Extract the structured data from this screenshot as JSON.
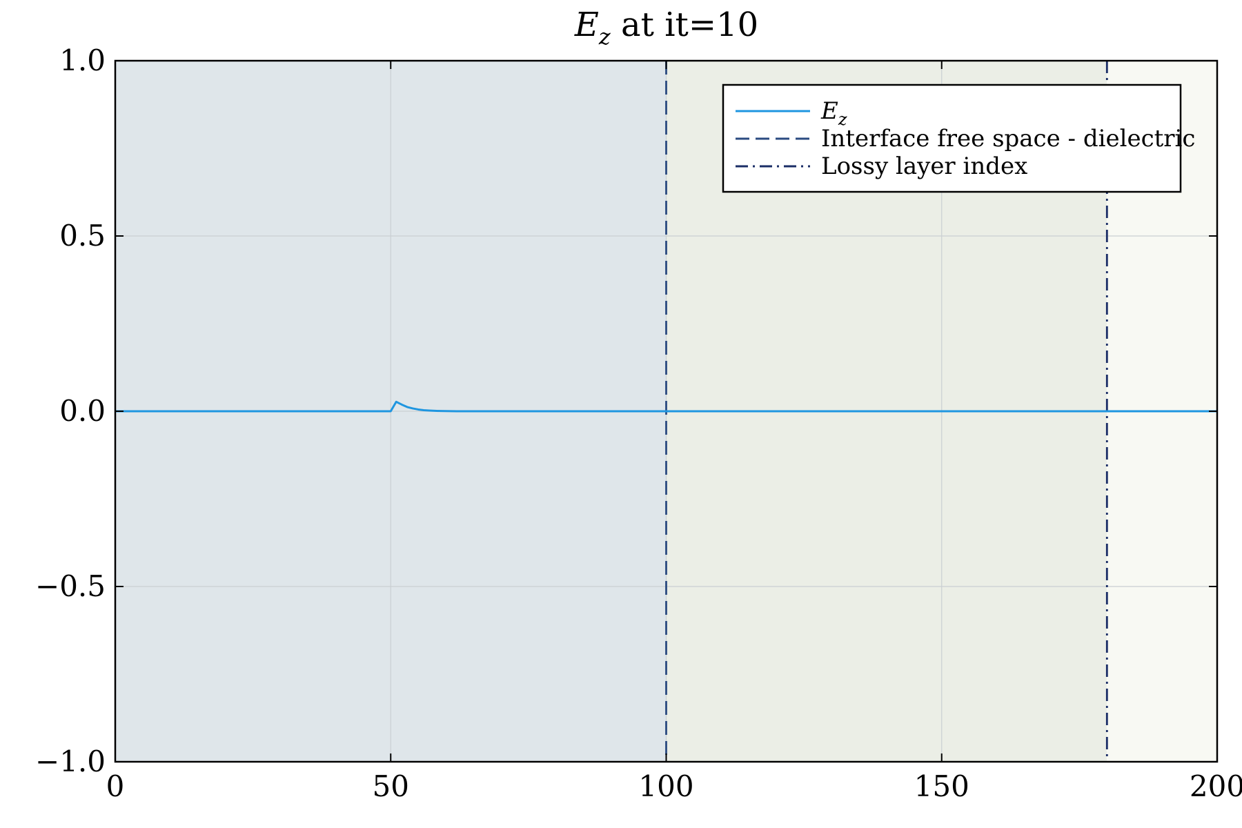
{
  "chart_data": {
    "type": "line",
    "title": {
      "symbol": "E",
      "subscript": "z",
      "suffix": " at it=10"
    },
    "xlabel": "",
    "ylabel": "",
    "xlim": [
      0,
      200
    ],
    "ylim": [
      -1.0,
      1.0
    ],
    "x_ticks": [
      0,
      50,
      100,
      150,
      200
    ],
    "x_tick_labels": [
      "0",
      "50",
      "100",
      "150",
      "200"
    ],
    "y_ticks": [
      -1.0,
      -0.5,
      0.0,
      0.5,
      1.0
    ],
    "y_tick_labels": [
      "−1.0",
      "−0.5",
      "0.0",
      "0.5",
      "1.0"
    ],
    "grid": true,
    "legend_position": "top-right",
    "regions": [
      {
        "from": 0,
        "to": 100,
        "color": "#dfe6ea"
      },
      {
        "from": 100,
        "to": 180,
        "color": "#ebeee6"
      },
      {
        "from": 180,
        "to": 200,
        "color": "#f8f9f3"
      }
    ],
    "series": [
      {
        "name": {
          "symbol": "E",
          "subscript": "z"
        },
        "style": "solid",
        "color": "#1f96e0",
        "points": [
          [
            0,
            0.0
          ],
          [
            49,
            0.0
          ],
          [
            50,
            0.0
          ],
          [
            51,
            0.027
          ],
          [
            52,
            0.019
          ],
          [
            53,
            0.012
          ],
          [
            54,
            0.008
          ],
          [
            55,
            0.005
          ],
          [
            56,
            0.003
          ],
          [
            57,
            0.002
          ],
          [
            58,
            0.0012
          ],
          [
            59,
            0.0007
          ],
          [
            60,
            0.0004
          ],
          [
            62,
            0.0001
          ],
          [
            65,
            0.0
          ],
          [
            100,
            0.0
          ],
          [
            200,
            0.0
          ]
        ]
      }
    ],
    "vlines": [
      {
        "name": "Interface free space - dielectric",
        "x": 100,
        "style": "dashed",
        "color": "#2a4a80"
      },
      {
        "name": "Lossy layer index",
        "x": 180,
        "style": "dashdot",
        "color": "#1a2d66"
      }
    ]
  }
}
